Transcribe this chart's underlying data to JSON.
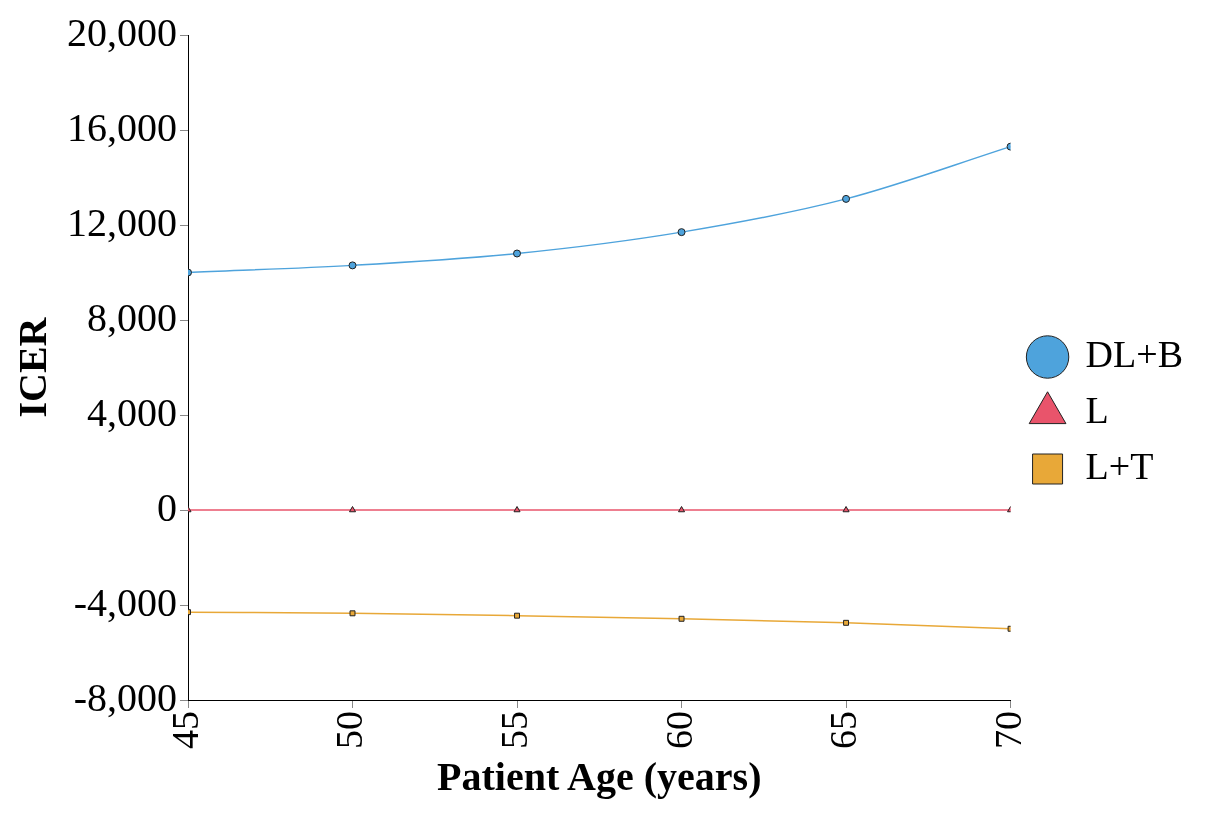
{
  "chart_data": {
    "type": "line",
    "xlabel": "Patient Age (years)",
    "ylabel": "ICER",
    "x": [
      45,
      50,
      55,
      60,
      65,
      70
    ],
    "xlim": [
      45,
      70
    ],
    "xticks": [
      45,
      50,
      55,
      60,
      65,
      70
    ],
    "ylim": [
      -8000,
      20000
    ],
    "yticks": [
      {
        "value": -8000,
        "label": "-8,000"
      },
      {
        "value": -4000,
        "label": "-4,000"
      },
      0,
      {
        "value": 4000,
        "label": "4,000"
      },
      {
        "value": 8000,
        "label": "8,000"
      },
      {
        "value": 12000,
        "label": "12,000"
      },
      {
        "value": 16000,
        "label": "16,000"
      },
      {
        "value": 20000,
        "label": "20,000"
      }
    ],
    "grid": false,
    "legend": "right",
    "series": [
      {
        "name": "DL+B",
        "color": "#4ea3dc",
        "marker": "circle",
        "values": [
          10000,
          10300,
          10800,
          11700,
          13100,
          15300
        ]
      },
      {
        "name": "L",
        "color": "#e9546b",
        "marker": "triangle",
        "values": [
          0,
          0,
          0,
          0,
          0,
          0
        ]
      },
      {
        "name": "L+T",
        "color": "#e8a838",
        "marker": "square",
        "values": [
          -4300,
          -4350,
          -4450,
          -4580,
          -4750,
          -5000
        ]
      }
    ]
  }
}
